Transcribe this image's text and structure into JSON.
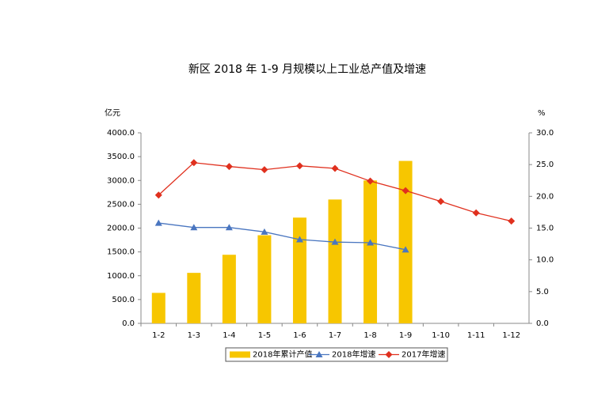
{
  "chart_data": {
    "type": "bar",
    "title": "新区 2018 年 1-9 月规模以上工业总产值及增速",
    "y_label": "亿元",
    "y2_label": "%",
    "categories": [
      "1-2",
      "1-3",
      "1-4",
      "1-5",
      "1-6",
      "1-7",
      "1-8",
      "1-9",
      "1-10",
      "1-11",
      "1-12"
    ],
    "series": [
      {
        "name": "2018年累计产值",
        "type": "bar",
        "color": "#f7c600",
        "values": [
          640,
          1060,
          1440,
          1850,
          2220,
          2600,
          3000,
          3410,
          null,
          null,
          null
        ]
      },
      {
        "name": "2018年增速",
        "type": "line",
        "axis": "y2",
        "color": "#4a76c0",
        "marker": "triangle",
        "values": [
          15.8,
          15.1,
          15.1,
          14.4,
          13.2,
          12.8,
          12.7,
          11.6,
          null,
          null,
          null
        ]
      },
      {
        "name": "2017年增速",
        "type": "line",
        "axis": "y2",
        "color": "#e0301e",
        "marker": "diamond",
        "values": [
          20.2,
          25.3,
          24.7,
          24.2,
          24.8,
          24.4,
          22.4,
          20.9,
          19.2,
          17.4,
          16.1
        ]
      }
    ],
    "ylim": [
      0,
      4000
    ],
    "yticks": [
      {
        "value": 0,
        "label": "0.0"
      },
      {
        "value": 500,
        "label": "500.0"
      },
      {
        "value": 1000,
        "label": "1000.0"
      },
      {
        "value": 1500,
        "label": "1500.0"
      },
      {
        "value": 2000,
        "label": "2000.0"
      },
      {
        "value": 2500,
        "label": "2500.0"
      },
      {
        "value": 3000,
        "label": "3000.0"
      },
      {
        "value": 3500,
        "label": "3500.0"
      },
      {
        "value": 4000,
        "label": "4000.0"
      }
    ],
    "y2lim": [
      0,
      30
    ],
    "y2ticks": [
      {
        "value": 0,
        "label": "0.0"
      },
      {
        "value": 5,
        "label": "5.0"
      },
      {
        "value": 10,
        "label": "10.0"
      },
      {
        "value": 15,
        "label": "15.0"
      },
      {
        "value": 20,
        "label": "20.0"
      },
      {
        "value": 25,
        "label": "25.0"
      },
      {
        "value": 30,
        "label": "30.0"
      }
    ],
    "legend": "bottom"
  }
}
